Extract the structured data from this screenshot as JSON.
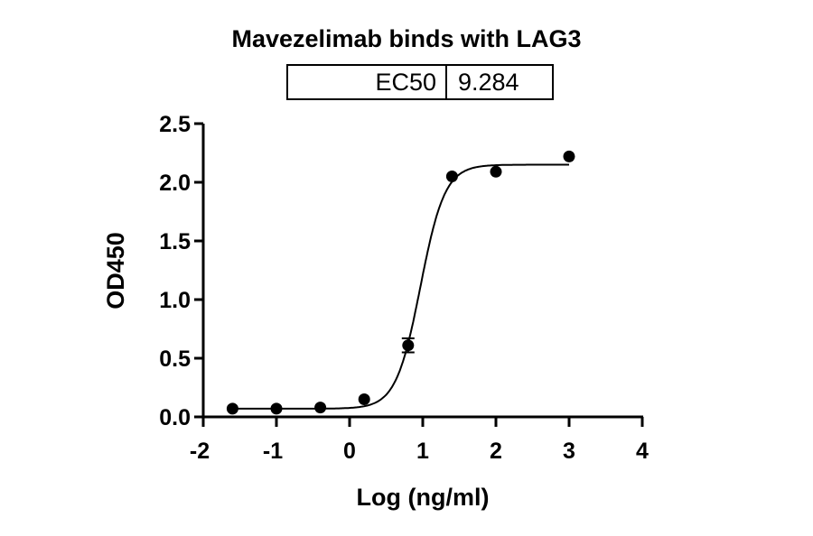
{
  "chart_data": {
    "type": "scatter",
    "title": "Mavezelimab binds with LAG3",
    "annotation_table": {
      "label": "EC50",
      "value": "9.284"
    },
    "xlabel": "Log (ng/ml)",
    "ylabel": "OD450",
    "xlim": [
      -2,
      4
    ],
    "ylim": [
      0,
      2.5
    ],
    "x_ticks": [
      "-2",
      "-1",
      "0",
      "1",
      "2",
      "3",
      "4"
    ],
    "y_ticks": [
      "0.0",
      "0.5",
      "1.0",
      "1.5",
      "2.0",
      "2.5"
    ],
    "grid": false,
    "legend": null,
    "series": [
      {
        "name": "Mavezelimab",
        "x": [
          -1.6,
          -1.0,
          -0.4,
          0.2,
          0.8,
          1.4,
          2.0,
          3.0
        ],
        "y": [
          0.07,
          0.07,
          0.08,
          0.15,
          0.61,
          2.05,
          2.09,
          2.22
        ],
        "error": [
          0,
          0,
          0,
          0,
          0.06,
          0,
          0,
          0
        ],
        "marker": "filled-circle",
        "color": "#000000"
      }
    ],
    "fit": {
      "type": "4PL sigmoid",
      "bottom": 0.07,
      "top": 2.15,
      "log_ec50": 0.968,
      "hill_slope": 2.6,
      "x_range": [
        -1.6,
        3.0
      ]
    }
  }
}
